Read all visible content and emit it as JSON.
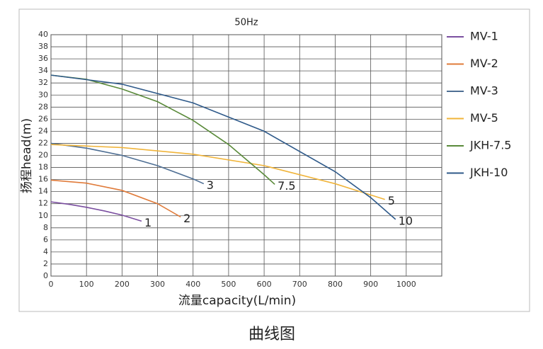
{
  "chart_data": {
    "type": "line",
    "title": "50Hz",
    "x_label": "流量capacity(L/min)",
    "y_label": "扬程head(m)",
    "caption": "曲线图",
    "xlim": [
      0,
      1100
    ],
    "xticks": [
      0,
      100,
      200,
      300,
      400,
      500,
      600,
      700,
      800,
      900,
      1000
    ],
    "ylim": [
      0,
      40
    ],
    "yticks": [
      0,
      2,
      4,
      6,
      8,
      10,
      12,
      14,
      16,
      18,
      20,
      22,
      24,
      26,
      28,
      30,
      32,
      34,
      36,
      38,
      40
    ],
    "grid": true,
    "legend": "right",
    "series": [
      {
        "name": "MV-1",
        "color": "#7b4fa0",
        "end_label": "1",
        "x": [
          0,
          50,
          100,
          150,
          200,
          255
        ],
        "values": [
          12.3,
          11.9,
          11.4,
          10.8,
          10.1,
          9.1
        ]
      },
      {
        "name": "MV-2",
        "color": "#e07b3a",
        "end_label": "2",
        "x": [
          0,
          100,
          200,
          300,
          365
        ],
        "values": [
          15.9,
          15.4,
          14.2,
          12.0,
          9.8
        ]
      },
      {
        "name": "MV-3",
        "color": "#4f6f94",
        "end_label": "3",
        "x": [
          0,
          100,
          200,
          300,
          400,
          430
        ],
        "values": [
          22.0,
          21.2,
          20.0,
          18.3,
          16.1,
          15.3
        ]
      },
      {
        "name": "MV-5",
        "color": "#f0b43a",
        "end_label": "5",
        "x": [
          0,
          200,
          400,
          600,
          800,
          940
        ],
        "values": [
          21.8,
          21.3,
          20.2,
          18.3,
          15.3,
          12.7
        ]
      },
      {
        "name": "JKH-7.5",
        "color": "#5a8a3a",
        "end_label": "7.5",
        "x": [
          0,
          100,
          200,
          300,
          400,
          500,
          600,
          630
        ],
        "values": [
          33.3,
          32.6,
          31.0,
          28.9,
          25.8,
          21.8,
          16.8,
          15.2
        ]
      },
      {
        "name": "JKH-10",
        "color": "#2f5a8a",
        "end_label": "10",
        "x": [
          0,
          200,
          400,
          600,
          800,
          900,
          970
        ],
        "values": [
          33.3,
          31.8,
          28.7,
          24.0,
          17.3,
          13.0,
          9.4
        ]
      }
    ]
  }
}
